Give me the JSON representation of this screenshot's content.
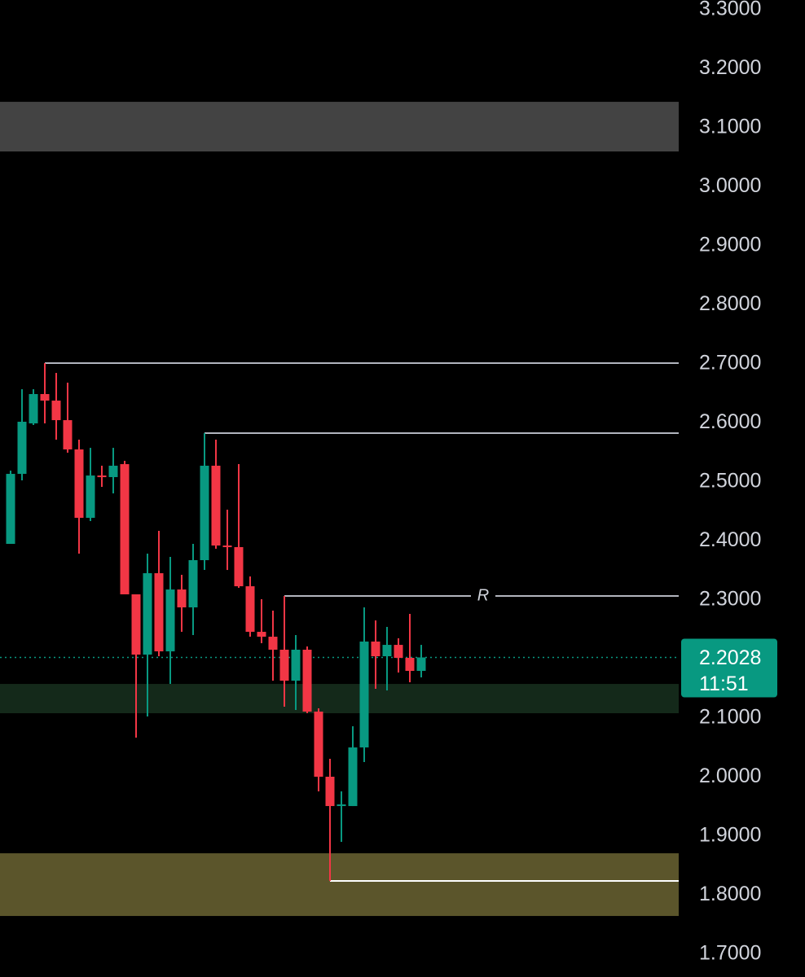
{
  "chart_data": {
    "type": "candlestick",
    "up_color": "#089981",
    "down_color": "#f23645",
    "ylim": [
      1.6614,
      3.3166
    ],
    "yticks": [
      {
        "value": 3.3,
        "label": "3.3000"
      },
      {
        "value": 3.2,
        "label": "3.2000"
      },
      {
        "value": 3.1,
        "label": "3.1000"
      },
      {
        "value": 3.0,
        "label": "3.0000"
      },
      {
        "value": 2.9,
        "label": "2.9000"
      },
      {
        "value": 2.8,
        "label": "2.8000"
      },
      {
        "value": 2.7,
        "label": "2.7000"
      },
      {
        "value": 2.6,
        "label": "2.6000"
      },
      {
        "value": 2.5,
        "label": "2.5000"
      },
      {
        "value": 2.4,
        "label": "2.4000"
      },
      {
        "value": 2.3,
        "label": "2.3000"
      },
      {
        "value": 2.2,
        "label": "2.2000"
      },
      {
        "value": 2.1,
        "label": "2.1000"
      },
      {
        "value": 2.0,
        "label": "2.0000"
      },
      {
        "value": 1.9,
        "label": "1.9000"
      },
      {
        "value": 1.8,
        "label": "1.8000"
      },
      {
        "value": 1.7,
        "label": "1.7000"
      }
    ],
    "open": [
      2.3952,
      2.5138,
      2.5993,
      2.649,
      2.6379,
      2.6048,
      2.5552,
      2.4393,
      2.511,
      2.5083,
      2.5303,
      2.3097,
      2.2076,
      2.3455,
      2.2131,
      2.3179,
      2.2876,
      2.3676,
      2.5276,
      2.3924,
      2.3897,
      2.3234,
      2.2462,
      2.2379,
      2.2159,
      2.1634,
      2.2159,
      2.111,
      2.0007,
      1.951,
      1.951,
      2.0503,
      2.2297,
      2.2048,
      2.2241,
      2.2021,
      2.18
    ],
    "high": [
      2.5193,
      2.6572,
      2.6572,
      2.7014,
      2.6848,
      2.6683,
      2.5717,
      2.5579,
      2.5276,
      2.5579,
      2.5359,
      2.3097,
      2.3786,
      2.4172,
      2.3731,
      2.3428,
      2.3952,
      2.5828,
      2.5717,
      2.4531,
      2.5303,
      2.34,
      2.3014,
      2.2821,
      2.3069,
      2.2407,
      2.2214,
      2.1166,
      2.031,
      1.9759,
      2.0862,
      2.2876,
      2.2655,
      2.2545,
      2.2352,
      2.2766,
      2.2241
    ],
    "low": [
      2.3952,
      2.5028,
      2.5966,
      2.5993,
      2.5717,
      2.5497,
      2.3786,
      2.4338,
      2.4917,
      2.4807,
      2.3097,
      2.0669,
      2.1028,
      2.2048,
      2.1579,
      2.2462,
      2.2407,
      2.351,
      2.3869,
      2.351,
      2.3207,
      2.2379,
      2.2269,
      2.1634,
      2.1193,
      2.1138,
      2.1083,
      1.9759,
      1.8241,
      1.8903,
      1.951,
      2.0255,
      2.1497,
      2.1469,
      2.1772,
      2.1607,
      2.169
    ],
    "close": [
      2.5138,
      2.6021,
      2.649,
      2.6379,
      2.6048,
      2.5552,
      2.4393,
      2.511,
      2.5083,
      2.5276,
      2.3097,
      2.2076,
      2.3455,
      2.2131,
      2.3179,
      2.2876,
      2.3676,
      2.5276,
      2.3924,
      2.3897,
      2.3234,
      2.2462,
      2.2379,
      2.2159,
      2.1634,
      2.2159,
      2.111,
      2.0007,
      1.951,
      1.9538,
      2.0503,
      2.2297,
      2.2048,
      2.2241,
      2.2021,
      2.18,
      2.2028
    ],
    "levels": [
      {
        "value": 2.7014,
        "color": "#b2b5be"
      },
      {
        "value": 2.5828,
        "color": "#b2b5be"
      },
      {
        "value": 2.3069,
        "color": "#b2b5be",
        "label": "R"
      },
      {
        "value": 1.8241,
        "color": "#ffffff"
      }
    ],
    "zones": [
      {
        "top": 3.1441,
        "bottom": 3.06,
        "color": "#434343"
      },
      {
        "top": 2.1579,
        "bottom": 2.1083,
        "color": "#14291a"
      },
      {
        "top": 1.871,
        "bottom": 1.7648,
        "color": "#5b552b"
      }
    ],
    "last_price": 2.2028,
    "countdown": "11:51"
  }
}
